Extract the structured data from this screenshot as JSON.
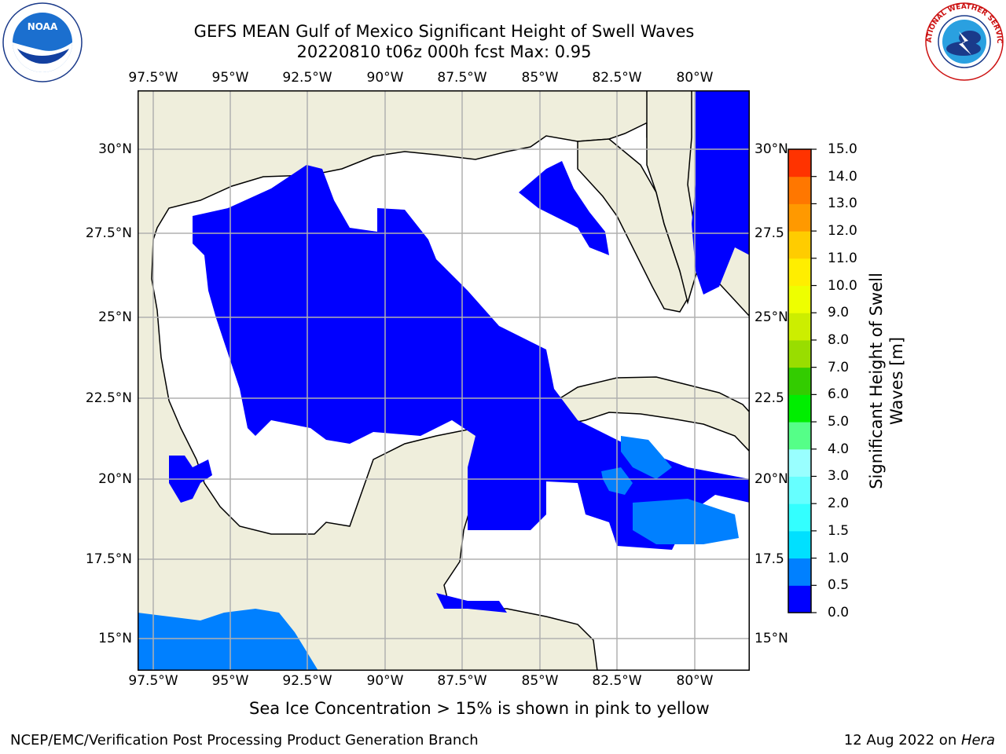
{
  "header": {
    "title_line1": "GEFS MEAN Gulf of Mexico Significant Height of Swell Waves",
    "title_line2": "20220810 t06z 000h fcst   Max: 0.95"
  },
  "logos": {
    "left": "NOAA",
    "right": "NATIONAL WEATHER SERVICE"
  },
  "map": {
    "lon_labels": [
      "97.5°W",
      "95°W",
      "92.5°W",
      "90°W",
      "87.5°W",
      "85°W",
      "82.5°W",
      "80°W"
    ],
    "lat_labels_left": [
      "30°N",
      "27.5°N",
      "25°N",
      "22.5°N",
      "20°N",
      "17.5°N",
      "15°N"
    ],
    "lat_labels_right": [
      "30°N",
      "27.5",
      "25°N",
      "22.5",
      "20°N",
      "17.5",
      "15°N"
    ],
    "land_color": "#efeedc",
    "grid_color": "#b0b0b0"
  },
  "colorbar": {
    "label_line1": "Significant Height of Swell",
    "label_line2": "Waves [m]",
    "ticks": [
      "0.0",
      "0.5",
      "1.0",
      "1.5",
      "2.0",
      "3.0",
      "4.0",
      "5.0",
      "6.0",
      "7.0",
      "8.0",
      "9.0",
      "10.0",
      "11.0",
      "12.0",
      "13.0",
      "14.0",
      "15.0"
    ],
    "colors": [
      "#0000ff",
      "#0080ff",
      "#00e0ff",
      "#33ffff",
      "#66ffff",
      "#99ffff",
      "#55ff88",
      "#00ee00",
      "#33cc00",
      "#99dd00",
      "#ccee00",
      "#eeff00",
      "#ffee00",
      "#ffcc00",
      "#ff9900",
      "#ff7700",
      "#ff3300",
      "#ff0000"
    ]
  },
  "legend_note": "Sea Ice Concentration > 15% is shown in pink to yellow",
  "footer": {
    "left": "NCEP/EMC/Verification Post Processing Product Generation Branch",
    "date": "12 Aug 2022 on ",
    "machine": "Hera"
  }
}
